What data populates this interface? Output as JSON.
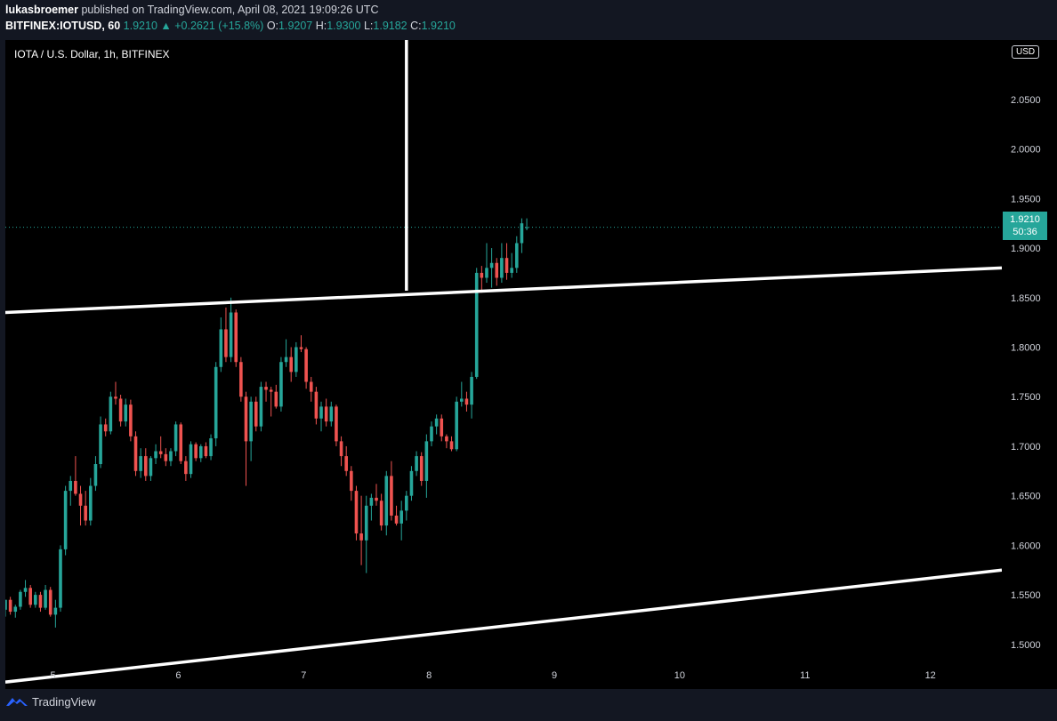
{
  "header": {
    "publisher": "lukasbroemer",
    "published_text": " published on TradingView.com, April 08, 2021 19:09:26 UTC",
    "symbol": "BITFINEX:IOTUSD, 60",
    "last": "1.9210",
    "change_arrow": "▲",
    "change": "+0.2621 (+15.8%)",
    "o_label": "O:",
    "o_value": "1.9207",
    "h_label": "H:",
    "h_value": "1.9300",
    "l_label": "L:",
    "l_value": "1.9182",
    "c_label": "C:",
    "c_value": "1.9210"
  },
  "chart_title": "IOTA / U.S. Dollar, 1h, BITFINEX",
  "currency": "USD",
  "last_price_badge": {
    "price": "1.9210",
    "countdown": "50:36"
  },
  "footer": {
    "brand": "TradingView",
    "logo_icon": "tradingview-logo-icon"
  },
  "colors": {
    "up": "#26a69a",
    "down": "#ef5350",
    "background": "#000000",
    "trendline": "#ffffff"
  },
  "chart_data": {
    "type": "candlestick",
    "title": "IOTA / U.S. Dollar, 1h, BITFINEX",
    "x_tick_labels": [
      "5",
      "6",
      "7",
      "8",
      "9",
      "10",
      "11",
      "12"
    ],
    "y_tick_labels": [
      "1.5000",
      "1.5500",
      "1.6000",
      "1.6500",
      "1.7000",
      "1.7500",
      "1.8000",
      "1.8500",
      "1.9000",
      "1.9500",
      "2.0000",
      "2.0500"
    ],
    "ylim": [
      1.455,
      2.11
    ],
    "xlim": [
      4.62,
      12.57
    ],
    "last_price": 1.921,
    "grid": false,
    "candles": [
      {
        "x": 4.62,
        "o": 1.535,
        "h": 1.545,
        "l": 1.528,
        "c": 1.545
      },
      {
        "x": 4.66,
        "o": 1.545,
        "h": 1.548,
        "l": 1.53,
        "c": 1.533
      },
      {
        "x": 4.7,
        "o": 1.533,
        "h": 1.54,
        "l": 1.527,
        "c": 1.538
      },
      {
        "x": 4.74,
        "o": 1.538,
        "h": 1.555,
        "l": 1.535,
        "c": 1.553
      },
      {
        "x": 4.78,
        "o": 1.553,
        "h": 1.565,
        "l": 1.548,
        "c": 1.557
      },
      {
        "x": 4.82,
        "o": 1.557,
        "h": 1.56,
        "l": 1.537,
        "c": 1.54
      },
      {
        "x": 4.86,
        "o": 1.54,
        "h": 1.553,
        "l": 1.537,
        "c": 1.55
      },
      {
        "x": 4.9,
        "o": 1.55,
        "h": 1.553,
        "l": 1.533,
        "c": 1.537
      },
      {
        "x": 4.94,
        "o": 1.537,
        "h": 1.56,
        "l": 1.535,
        "c": 1.555
      },
      {
        "x": 4.98,
        "o": 1.555,
        "h": 1.558,
        "l": 1.528,
        "c": 1.53
      },
      {
        "x": 5.02,
        "o": 1.53,
        "h": 1.545,
        "l": 1.517,
        "c": 1.537
      },
      {
        "x": 5.06,
        "o": 1.537,
        "h": 1.6,
        "l": 1.533,
        "c": 1.596
      },
      {
        "x": 5.1,
        "o": 1.596,
        "h": 1.66,
        "l": 1.59,
        "c": 1.655
      },
      {
        "x": 5.14,
        "o": 1.655,
        "h": 1.67,
        "l": 1.64,
        "c": 1.665
      },
      {
        "x": 5.18,
        "o": 1.665,
        "h": 1.69,
        "l": 1.65,
        "c": 1.652
      },
      {
        "x": 5.22,
        "o": 1.652,
        "h": 1.66,
        "l": 1.62,
        "c": 1.64
      },
      {
        "x": 5.26,
        "o": 1.64,
        "h": 1.655,
        "l": 1.62,
        "c": 1.625
      },
      {
        "x": 5.3,
        "o": 1.625,
        "h": 1.668,
        "l": 1.62,
        "c": 1.66
      },
      {
        "x": 5.34,
        "o": 1.66,
        "h": 1.69,
        "l": 1.655,
        "c": 1.682
      },
      {
        "x": 5.38,
        "o": 1.682,
        "h": 1.73,
        "l": 1.678,
        "c": 1.722
      },
      {
        "x": 5.42,
        "o": 1.722,
        "h": 1.728,
        "l": 1.71,
        "c": 1.715
      },
      {
        "x": 5.46,
        "o": 1.715,
        "h": 1.755,
        "l": 1.712,
        "c": 1.75
      },
      {
        "x": 5.5,
        "o": 1.75,
        "h": 1.765,
        "l": 1.742,
        "c": 1.748
      },
      {
        "x": 5.54,
        "o": 1.748,
        "h": 1.752,
        "l": 1.72,
        "c": 1.725
      },
      {
        "x": 5.58,
        "o": 1.725,
        "h": 1.748,
        "l": 1.72,
        "c": 1.742
      },
      {
        "x": 5.62,
        "o": 1.742,
        "h": 1.747,
        "l": 1.705,
        "c": 1.71
      },
      {
        "x": 5.66,
        "o": 1.71,
        "h": 1.715,
        "l": 1.67,
        "c": 1.675
      },
      {
        "x": 5.7,
        "o": 1.675,
        "h": 1.698,
        "l": 1.668,
        "c": 1.69
      },
      {
        "x": 5.74,
        "o": 1.69,
        "h": 1.698,
        "l": 1.665,
        "c": 1.67
      },
      {
        "x": 5.78,
        "o": 1.67,
        "h": 1.69,
        "l": 1.665,
        "c": 1.688
      },
      {
        "x": 5.82,
        "o": 1.688,
        "h": 1.702,
        "l": 1.682,
        "c": 1.695
      },
      {
        "x": 5.86,
        "o": 1.695,
        "h": 1.71,
        "l": 1.688,
        "c": 1.692
      },
      {
        "x": 5.9,
        "o": 1.692,
        "h": 1.698,
        "l": 1.68,
        "c": 1.685
      },
      {
        "x": 5.94,
        "o": 1.685,
        "h": 1.698,
        "l": 1.68,
        "c": 1.695
      },
      {
        "x": 5.98,
        "o": 1.695,
        "h": 1.725,
        "l": 1.69,
        "c": 1.722
      },
      {
        "x": 6.02,
        "o": 1.722,
        "h": 1.724,
        "l": 1.682,
        "c": 1.685
      },
      {
        "x": 6.06,
        "o": 1.685,
        "h": 1.69,
        "l": 1.665,
        "c": 1.672
      },
      {
        "x": 6.1,
        "o": 1.672,
        "h": 1.705,
        "l": 1.668,
        "c": 1.702
      },
      {
        "x": 6.14,
        "o": 1.702,
        "h": 1.704,
        "l": 1.685,
        "c": 1.688
      },
      {
        "x": 6.18,
        "o": 1.688,
        "h": 1.702,
        "l": 1.684,
        "c": 1.7
      },
      {
        "x": 6.22,
        "o": 1.7,
        "h": 1.704,
        "l": 1.688,
        "c": 1.69
      },
      {
        "x": 6.26,
        "o": 1.69,
        "h": 1.712,
        "l": 1.686,
        "c": 1.708
      },
      {
        "x": 6.3,
        "o": 1.708,
        "h": 1.785,
        "l": 1.7,
        "c": 1.78
      },
      {
        "x": 6.34,
        "o": 1.78,
        "h": 1.83,
        "l": 1.775,
        "c": 1.818
      },
      {
        "x": 6.38,
        "o": 1.818,
        "h": 1.84,
        "l": 1.785,
        "c": 1.79
      },
      {
        "x": 6.42,
        "o": 1.79,
        "h": 1.85,
        "l": 1.785,
        "c": 1.835
      },
      {
        "x": 6.46,
        "o": 1.835,
        "h": 1.838,
        "l": 1.78,
        "c": 1.785
      },
      {
        "x": 6.5,
        "o": 1.785,
        "h": 1.79,
        "l": 1.745,
        "c": 1.75
      },
      {
        "x": 6.54,
        "o": 1.75,
        "h": 1.755,
        "l": 1.66,
        "c": 1.705
      },
      {
        "x": 6.58,
        "o": 1.705,
        "h": 1.75,
        "l": 1.685,
        "c": 1.745
      },
      {
        "x": 6.62,
        "o": 1.745,
        "h": 1.75,
        "l": 1.715,
        "c": 1.72
      },
      {
        "x": 6.66,
        "o": 1.72,
        "h": 1.765,
        "l": 1.715,
        "c": 1.76
      },
      {
        "x": 6.7,
        "o": 1.76,
        "h": 1.765,
        "l": 1.745,
        "c": 1.757
      },
      {
        "x": 6.74,
        "o": 1.757,
        "h": 1.76,
        "l": 1.73,
        "c": 1.755
      },
      {
        "x": 6.78,
        "o": 1.755,
        "h": 1.762,
        "l": 1.738,
        "c": 1.74
      },
      {
        "x": 6.82,
        "o": 1.74,
        "h": 1.79,
        "l": 1.735,
        "c": 1.785
      },
      {
        "x": 6.86,
        "o": 1.785,
        "h": 1.808,
        "l": 1.78,
        "c": 1.79
      },
      {
        "x": 6.9,
        "o": 1.79,
        "h": 1.8,
        "l": 1.765,
        "c": 1.775
      },
      {
        "x": 6.94,
        "o": 1.775,
        "h": 1.805,
        "l": 1.77,
        "c": 1.8
      },
      {
        "x": 6.98,
        "o": 1.8,
        "h": 1.812,
        "l": 1.795,
        "c": 1.798
      },
      {
        "x": 7.02,
        "o": 1.798,
        "h": 1.8,
        "l": 1.758,
        "c": 1.765
      },
      {
        "x": 7.06,
        "o": 1.765,
        "h": 1.77,
        "l": 1.745,
        "c": 1.755
      },
      {
        "x": 7.1,
        "o": 1.755,
        "h": 1.76,
        "l": 1.722,
        "c": 1.728
      },
      {
        "x": 7.14,
        "o": 1.728,
        "h": 1.745,
        "l": 1.715,
        "c": 1.74
      },
      {
        "x": 7.18,
        "o": 1.74,
        "h": 1.748,
        "l": 1.72,
        "c": 1.725
      },
      {
        "x": 7.22,
        "o": 1.725,
        "h": 1.745,
        "l": 1.72,
        "c": 1.74
      },
      {
        "x": 7.26,
        "o": 1.74,
        "h": 1.742,
        "l": 1.7,
        "c": 1.705
      },
      {
        "x": 7.3,
        "o": 1.705,
        "h": 1.71,
        "l": 1.68,
        "c": 1.69
      },
      {
        "x": 7.34,
        "o": 1.69,
        "h": 1.7,
        "l": 1.67,
        "c": 1.675
      },
      {
        "x": 7.38,
        "o": 1.675,
        "h": 1.68,
        "l": 1.645,
        "c": 1.655
      },
      {
        "x": 7.42,
        "o": 1.655,
        "h": 1.66,
        "l": 1.605,
        "c": 1.612
      },
      {
        "x": 7.46,
        "o": 1.612,
        "h": 1.65,
        "l": 1.58,
        "c": 1.605
      },
      {
        "x": 7.5,
        "o": 1.605,
        "h": 1.65,
        "l": 1.572,
        "c": 1.64
      },
      {
        "x": 7.54,
        "o": 1.64,
        "h": 1.652,
        "l": 1.625,
        "c": 1.648
      },
      {
        "x": 7.58,
        "o": 1.648,
        "h": 1.662,
        "l": 1.64,
        "c": 1.645
      },
      {
        "x": 7.62,
        "o": 1.645,
        "h": 1.652,
        "l": 1.615,
        "c": 1.62
      },
      {
        "x": 7.66,
        "o": 1.62,
        "h": 1.675,
        "l": 1.61,
        "c": 1.67
      },
      {
        "x": 7.7,
        "o": 1.67,
        "h": 1.685,
        "l": 1.625,
        "c": 1.63
      },
      {
        "x": 7.74,
        "o": 1.63,
        "h": 1.64,
        "l": 1.62,
        "c": 1.622
      },
      {
        "x": 7.78,
        "o": 1.622,
        "h": 1.645,
        "l": 1.605,
        "c": 1.635
      },
      {
        "x": 7.82,
        "o": 1.635,
        "h": 1.655,
        "l": 1.625,
        "c": 1.65
      },
      {
        "x": 7.86,
        "o": 1.65,
        "h": 1.68,
        "l": 1.645,
        "c": 1.675
      },
      {
        "x": 7.9,
        "o": 1.675,
        "h": 1.695,
        "l": 1.67,
        "c": 1.69
      },
      {
        "x": 7.94,
        "o": 1.69,
        "h": 1.694,
        "l": 1.66,
        "c": 1.665
      },
      {
        "x": 7.98,
        "o": 1.665,
        "h": 1.712,
        "l": 1.648,
        "c": 1.705
      },
      {
        "x": 8.02,
        "o": 1.705,
        "h": 1.725,
        "l": 1.7,
        "c": 1.72
      },
      {
        "x": 8.06,
        "o": 1.72,
        "h": 1.732,
        "l": 1.712,
        "c": 1.728
      },
      {
        "x": 8.1,
        "o": 1.728,
        "h": 1.732,
        "l": 1.705,
        "c": 1.71
      },
      {
        "x": 8.14,
        "o": 1.71,
        "h": 1.712,
        "l": 1.698,
        "c": 1.705
      },
      {
        "x": 8.18,
        "o": 1.705,
        "h": 1.71,
        "l": 1.695,
        "c": 1.697
      },
      {
        "x": 8.22,
        "o": 1.697,
        "h": 1.75,
        "l": 1.695,
        "c": 1.745
      },
      {
        "x": 8.26,
        "o": 1.745,
        "h": 1.765,
        "l": 1.74,
        "c": 1.748
      },
      {
        "x": 8.3,
        "o": 1.748,
        "h": 1.755,
        "l": 1.735,
        "c": 1.742
      },
      {
        "x": 8.34,
        "o": 1.742,
        "h": 1.775,
        "l": 1.728,
        "c": 1.77
      },
      {
        "x": 8.38,
        "o": 1.77,
        "h": 1.88,
        "l": 1.768,
        "c": 1.875
      },
      {
        "x": 8.42,
        "o": 1.875,
        "h": 1.882,
        "l": 1.855,
        "c": 1.87
      },
      {
        "x": 8.46,
        "o": 1.87,
        "h": 1.905,
        "l": 1.865,
        "c": 1.88
      },
      {
        "x": 8.5,
        "o": 1.88,
        "h": 1.9,
        "l": 1.86,
        "c": 1.885
      },
      {
        "x": 8.54,
        "o": 1.885,
        "h": 1.89,
        "l": 1.862,
        "c": 1.87
      },
      {
        "x": 8.58,
        "o": 1.87,
        "h": 1.905,
        "l": 1.865,
        "c": 1.89
      },
      {
        "x": 8.62,
        "o": 1.89,
        "h": 1.905,
        "l": 1.868,
        "c": 1.875
      },
      {
        "x": 8.66,
        "o": 1.875,
        "h": 1.895,
        "l": 1.87,
        "c": 1.88
      },
      {
        "x": 8.7,
        "o": 1.88,
        "h": 1.912,
        "l": 1.875,
        "c": 1.905
      },
      {
        "x": 8.74,
        "o": 1.905,
        "h": 1.93,
        "l": 1.895,
        "c": 1.925
      },
      {
        "x": 8.78,
        "o": 1.921,
        "h": 1.93,
        "l": 1.918,
        "c": 1.921
      }
    ],
    "trendlines": [
      {
        "name": "upper-trendline",
        "from": {
          "x": 4.62,
          "y": 1.835
        },
        "to": {
          "x": 12.57,
          "y": 1.88
        }
      },
      {
        "name": "lower-trendline",
        "from": {
          "x": 4.62,
          "y": 1.462
        },
        "to": {
          "x": 12.57,
          "y": 1.575
        }
      },
      {
        "name": "vertical-marker",
        "from": {
          "x": 7.82,
          "y": 1.857
        },
        "to": {
          "x": 7.82,
          "y": 2.11
        }
      }
    ]
  }
}
